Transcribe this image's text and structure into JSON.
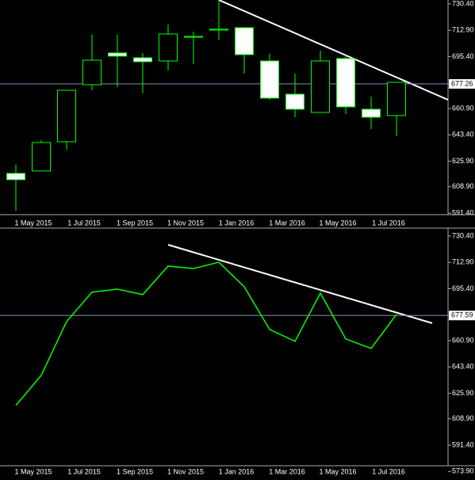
{
  "chart_data": [
    {
      "type": "candlestick",
      "categories": [
        null,
        "1 May 2015",
        null,
        "1 Jul 2015",
        null,
        "1 Sep 2015",
        null,
        "1 Nov 2015",
        null,
        "1 Jan 2016",
        null,
        "1 Mar 2016",
        null,
        "1 May 2016",
        null,
        "1 Jul 2016"
      ],
      "open": [
        617.8,
        619.4,
        638.8,
        676.7,
        697.8,
        694.6,
        692.5,
        708.3,
        713.0,
        714.6,
        692.5,
        670.4,
        658.3,
        694.1,
        660.4,
        656.2
      ],
      "high": [
        623.6,
        639.9,
        673.0,
        709.9,
        709.9,
        697.8,
        716.7,
        712.0,
        733.0,
        714.6,
        697.2,
        684.1,
        699.4,
        696.2,
        668.8,
        678.3
      ],
      "low": [
        593.0,
        619.4,
        633.6,
        673.0,
        675.1,
        671.0,
        686.2,
        690.4,
        706.7,
        684.1,
        666.7,
        655.1,
        658.3,
        657.2,
        647.2,
        642.5
      ],
      "close": [
        613.6,
        638.3,
        673.0,
        693.0,
        695.7,
        692.0,
        710.4,
        708.8,
        713.6,
        696.7,
        667.8,
        660.4,
        692.5,
        662.0,
        655.1,
        678.3
      ],
      "color": "#00ff00",
      "up_fill": "#000000",
      "down_fill": "#ffffff",
      "current_price": 677.26,
      "ylim": [
        590.9,
        733.0
      ],
      "yticks": [
        {
          "value": 730.4,
          "label": "730.40"
        },
        {
          "value": 712.9,
          "label": "712.90"
        },
        {
          "value": 695.4,
          "label": "695.40"
        },
        {
          "value": 660.9,
          "label": "660.90"
        },
        {
          "value": 643.4,
          "label": "643.40"
        },
        {
          "value": 625.9,
          "label": "625.90"
        },
        {
          "value": 608.9,
          "label": "608.90"
        },
        {
          "value": 591.4,
          "label": "591.40"
        }
      ]
    },
    {
      "type": "line",
      "categories": [
        null,
        "1 May 2015",
        null,
        "1 Jul 2015",
        null,
        "1 Sep 2015",
        null,
        "1 Nov 2015",
        null,
        "1 Jan 2016",
        null,
        "1 Mar 2016",
        null,
        "1 May 2016",
        null,
        "1 Jul 2016"
      ],
      "values": [
        617.8,
        637.8,
        673.6,
        693.1,
        695.1,
        691.5,
        710.4,
        708.8,
        713.0,
        696.7,
        668.3,
        660.4,
        692.5,
        662.0,
        655.7,
        678.3
      ],
      "color": "#00ff00",
      "current_price": 677.59,
      "ylim": [
        571.4,
        734.6
      ],
      "yticks": [
        {
          "value": 730.4,
          "label": "730.40"
        },
        {
          "value": 712.9,
          "label": "712.90"
        },
        {
          "value": 695.4,
          "label": "695.40"
        },
        {
          "value": 660.9,
          "label": "660.90"
        },
        {
          "value": 643.4,
          "label": "643.40"
        },
        {
          "value": 625.9,
          "label": "625.90"
        },
        {
          "value": 608.9,
          "label": "608.90"
        },
        {
          "value": 591.4,
          "label": "591.40"
        },
        {
          "value": 573.9,
          "label": "573.90"
        }
      ]
    }
  ]
}
